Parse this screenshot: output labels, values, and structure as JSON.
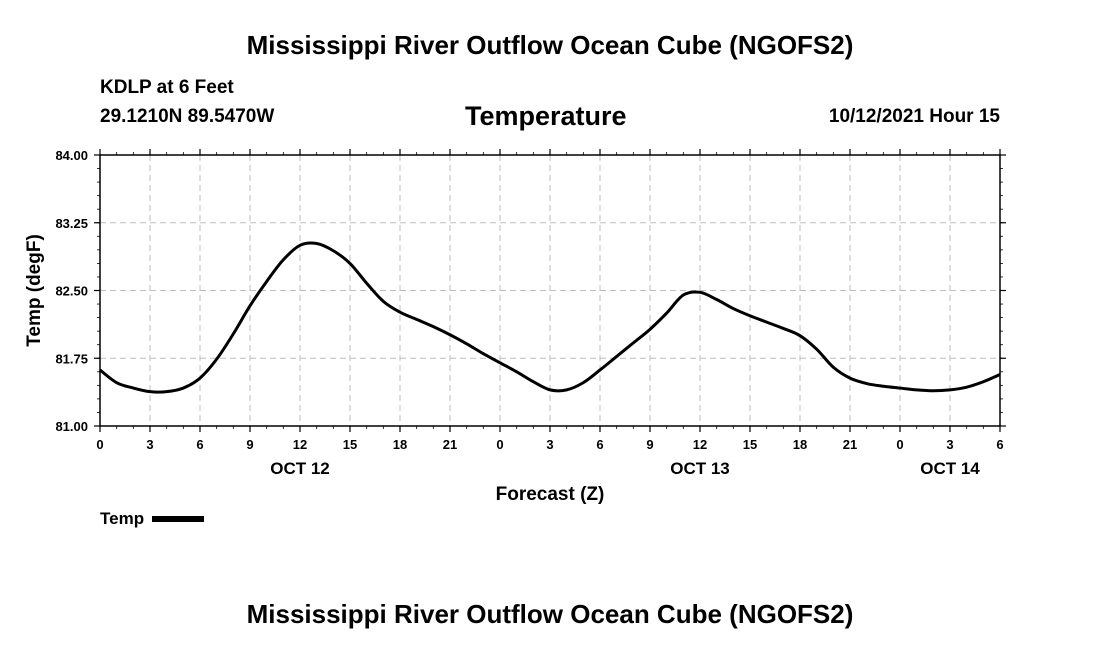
{
  "header": {
    "main_title": "Mississippi River Outflow Ocean Cube (NGOFS2)",
    "station": "KDLP at 6 Feet",
    "coords": "29.1210N  89.5470W",
    "chart_title": "Temperature",
    "datetime": "10/12/2021 Hour 15"
  },
  "footer": {
    "title": "Mississippi River Outflow Ocean Cube (NGOFS2)"
  },
  "legend": {
    "label": "Temp"
  },
  "chart_data": {
    "type": "line",
    "title": "Temperature",
    "xlabel": "Forecast (Z)",
    "ylabel": "Temp (degF)",
    "ylim": [
      81.0,
      84.0
    ],
    "xlim": [
      0,
      54
    ],
    "yticks": [
      "81.00",
      "81.75",
      "82.50",
      "83.25",
      "84.00"
    ],
    "ytick_values": [
      81.0,
      81.75,
      82.5,
      83.25,
      84.0
    ],
    "xticks": [
      "0",
      "3",
      "6",
      "9",
      "12",
      "15",
      "18",
      "21",
      "0",
      "3",
      "6",
      "9",
      "12",
      "15",
      "18",
      "21",
      "0",
      "3",
      "6"
    ],
    "day_labels": [
      {
        "label": "OCT 12",
        "hour": 12
      },
      {
        "label": "OCT 13",
        "hour": 36
      },
      {
        "label": "OCT 14",
        "hour": 51
      }
    ],
    "grid": true,
    "series": [
      {
        "name": "Temp",
        "color": "#000000",
        "x": [
          0,
          1,
          2,
          3,
          4,
          5,
          6,
          7,
          8,
          9,
          10,
          11,
          12,
          13,
          14,
          15,
          16,
          17,
          18,
          19,
          20,
          21,
          22,
          23,
          24,
          25,
          26,
          27,
          28,
          29,
          30,
          31,
          32,
          33,
          34,
          35,
          36,
          37,
          38,
          39,
          40,
          41,
          42,
          43,
          44,
          45,
          46,
          47,
          48,
          49,
          50,
          51,
          52,
          53,
          54
        ],
        "values": [
          81.62,
          81.48,
          81.42,
          81.38,
          81.38,
          81.42,
          81.53,
          81.74,
          82.02,
          82.33,
          82.6,
          82.84,
          83.0,
          83.02,
          82.94,
          82.8,
          82.58,
          82.38,
          82.26,
          82.18,
          82.1,
          82.01,
          81.91,
          81.8,
          81.7,
          81.6,
          81.49,
          81.4,
          81.4,
          81.48,
          81.62,
          81.77,
          81.92,
          82.07,
          82.25,
          82.45,
          82.48,
          82.4,
          82.3,
          82.22,
          82.15,
          82.08,
          82.0,
          81.85,
          81.65,
          81.53,
          81.47,
          81.44,
          81.42,
          81.4,
          81.39,
          81.4,
          81.43,
          81.49,
          81.57
        ]
      }
    ]
  }
}
